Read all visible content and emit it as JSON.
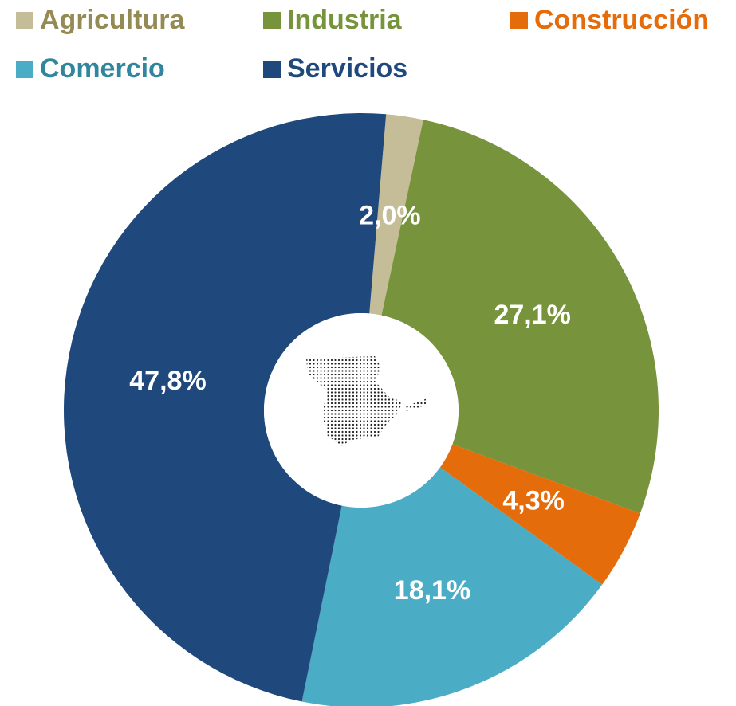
{
  "chart_data": {
    "type": "donut",
    "categories": [
      "Agricultura",
      "Industria",
      "Construcción",
      "Comercio",
      "Servicios"
    ],
    "values": [
      2.0,
      27.1,
      4.3,
      18.1,
      47.8
    ],
    "value_labels": [
      "2,0%",
      "27,1%",
      "4,3%",
      "18,1%",
      "47,8%"
    ],
    "colors": [
      "#c4bd97",
      "#77933c",
      "#e46c0a",
      "#4bacc6",
      "#1f497d"
    ],
    "legend_text_colors": [
      "#948a54",
      "#77933c",
      "#e46c0a",
      "#31859c",
      "#1f497d"
    ]
  }
}
